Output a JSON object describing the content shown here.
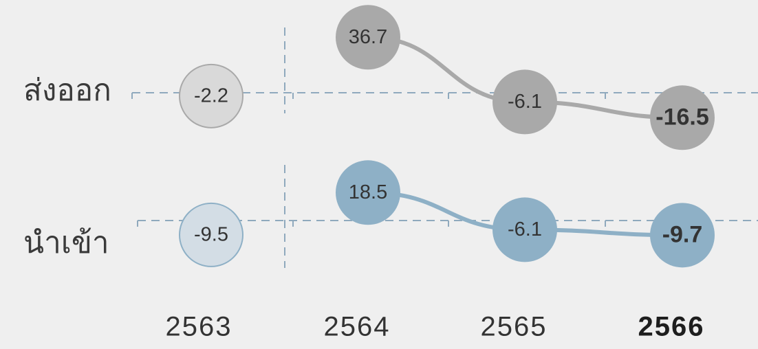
{
  "chart_data": {
    "type": "line",
    "categories": [
      "2563",
      "2564",
      "2565",
      "2566"
    ],
    "highlight_category": "2566",
    "series": [
      {
        "name": "ส่งออก",
        "values": [
          -2.2,
          36.7,
          -6.1,
          -16.5
        ],
        "labels": [
          "-2.2",
          "36.7",
          "-6.1",
          "-16.5"
        ],
        "color": "#a9a9a9",
        "faded_color": "#d9d9d9",
        "highlight_text_color": "#333333"
      },
      {
        "name": "นำเข้า",
        "values": [
          -9.5,
          18.5,
          -6.1,
          -9.7
        ],
        "labels": [
          "-9.5",
          "18.5",
          "-6.1",
          "-9.7"
        ],
        "color": "#8eb0c6",
        "faded_color": "#d3dde5",
        "highlight_text_color": "#0d2a5c"
      }
    ],
    "connected_from_index": 1,
    "zero_reference_line": true,
    "grid": false,
    "legend": "left"
  }
}
